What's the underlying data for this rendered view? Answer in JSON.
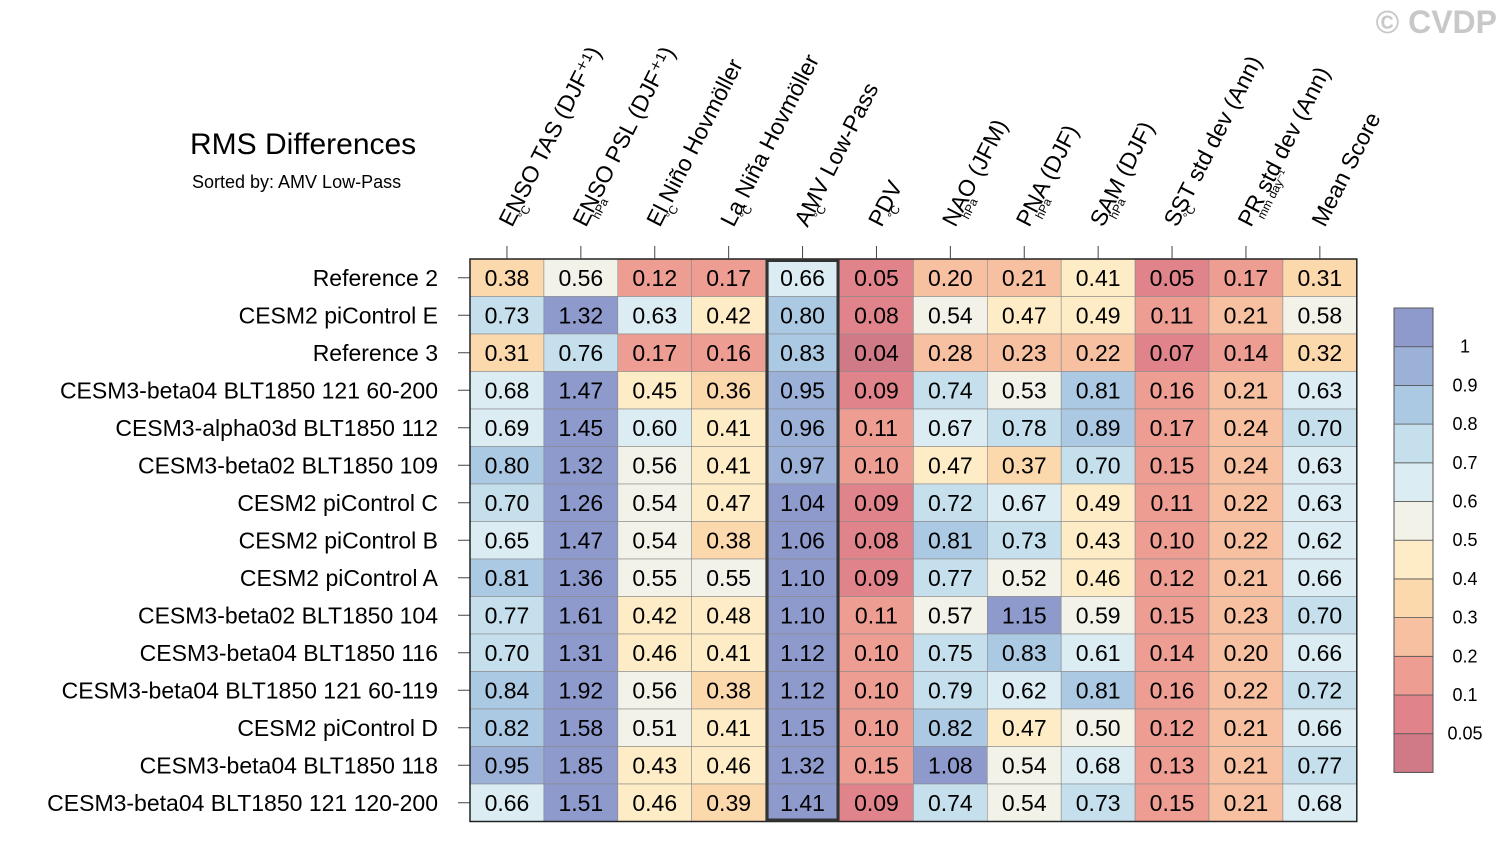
{
  "watermark": "© CVDP",
  "chart_data": {
    "type": "heatmap",
    "title": "RMS Differences",
    "subtitle": "Sorted by: AMV Low-Pass",
    "highlighted_column": "AMV Low-Pass",
    "columns": [
      {
        "label": "ENSO TAS (DJF⁺¹)",
        "unit": "°C"
      },
      {
        "label": "ENSO PSL (DJF⁺¹)",
        "unit": "hPa"
      },
      {
        "label": "El Niño Hovmöller",
        "unit": "°C"
      },
      {
        "label": "La Niña Hovmöller",
        "unit": "°C"
      },
      {
        "label": "AMV Low-Pass",
        "unit": "°C"
      },
      {
        "label": "PDV",
        "unit": "°C"
      },
      {
        "label": "NAO (JFM)",
        "unit": "hPa"
      },
      {
        "label": "PNA (DJF)",
        "unit": "hPa"
      },
      {
        "label": "SAM (DJF)",
        "unit": "hPa"
      },
      {
        "label": "SST std dev (Ann)",
        "unit": "°C"
      },
      {
        "label": "PR std dev (Ann)",
        "unit": "mm day⁻¹"
      },
      {
        "label": "Mean Score",
        "unit": ""
      }
    ],
    "rows": [
      {
        "label": "Reference 2",
        "values": [
          "0.38",
          "0.56",
          "0.12",
          "0.17",
          "0.66",
          "0.05",
          "0.20",
          "0.21",
          "0.41",
          "0.05",
          "0.17",
          "0.31"
        ]
      },
      {
        "label": "CESM2 piControl E",
        "values": [
          "0.73",
          "1.32",
          "0.63",
          "0.42",
          "0.80",
          "0.08",
          "0.54",
          "0.47",
          "0.49",
          "0.11",
          "0.21",
          "0.58"
        ]
      },
      {
        "label": "Reference 3",
        "values": [
          "0.31",
          "0.76",
          "0.17",
          "0.16",
          "0.83",
          "0.04",
          "0.28",
          "0.23",
          "0.22",
          "0.07",
          "0.14",
          "0.32"
        ]
      },
      {
        "label": "CESM3-beta04 BLT1850 121 60-200",
        "values": [
          "0.68",
          "1.47",
          "0.45",
          "0.36",
          "0.95",
          "0.09",
          "0.74",
          "0.53",
          "0.81",
          "0.16",
          "0.21",
          "0.63"
        ]
      },
      {
        "label": "CESM3-alpha03d BLT1850 112",
        "values": [
          "0.69",
          "1.45",
          "0.60",
          "0.41",
          "0.96",
          "0.11",
          "0.67",
          "0.78",
          "0.89",
          "0.17",
          "0.24",
          "0.70"
        ]
      },
      {
        "label": "CESM3-beta02 BLT1850 109",
        "values": [
          "0.80",
          "1.32",
          "0.56",
          "0.41",
          "0.97",
          "0.10",
          "0.47",
          "0.37",
          "0.70",
          "0.15",
          "0.24",
          "0.63"
        ]
      },
      {
        "label": "CESM2 piControl C",
        "values": [
          "0.70",
          "1.26",
          "0.54",
          "0.47",
          "1.04",
          "0.09",
          "0.72",
          "0.67",
          "0.49",
          "0.11",
          "0.22",
          "0.63"
        ]
      },
      {
        "label": "CESM2 piControl B",
        "values": [
          "0.65",
          "1.47",
          "0.54",
          "0.38",
          "1.06",
          "0.08",
          "0.81",
          "0.73",
          "0.43",
          "0.10",
          "0.22",
          "0.62"
        ]
      },
      {
        "label": "CESM2 piControl A",
        "values": [
          "0.81",
          "1.36",
          "0.55",
          "0.55",
          "1.10",
          "0.09",
          "0.77",
          "0.52",
          "0.46",
          "0.12",
          "0.21",
          "0.66"
        ]
      },
      {
        "label": "CESM3-beta02 BLT1850 104",
        "values": [
          "0.77",
          "1.61",
          "0.42",
          "0.48",
          "1.10",
          "0.11",
          "0.57",
          "1.15",
          "0.59",
          "0.15",
          "0.23",
          "0.70"
        ]
      },
      {
        "label": "CESM3-beta04 BLT1850 116",
        "values": [
          "0.70",
          "1.31",
          "0.46",
          "0.41",
          "1.12",
          "0.10",
          "0.75",
          "0.83",
          "0.61",
          "0.14",
          "0.20",
          "0.66"
        ]
      },
      {
        "label": "CESM3-beta04 BLT1850 121 60-119",
        "values": [
          "0.84",
          "1.92",
          "0.56",
          "0.38",
          "1.12",
          "0.10",
          "0.79",
          "0.62",
          "0.81",
          "0.16",
          "0.22",
          "0.72"
        ]
      },
      {
        "label": "CESM2 piControl D",
        "values": [
          "0.82",
          "1.58",
          "0.51",
          "0.41",
          "1.15",
          "0.10",
          "0.82",
          "0.47",
          "0.50",
          "0.12",
          "0.21",
          "0.66"
        ]
      },
      {
        "label": "CESM3-beta04 BLT1850 118",
        "values": [
          "0.95",
          "1.85",
          "0.43",
          "0.46",
          "1.32",
          "0.15",
          "1.08",
          "0.54",
          "0.68",
          "0.13",
          "0.21",
          "0.77"
        ]
      },
      {
        "label": "CESM3-beta04 BLT1850 121 120-200",
        "values": [
          "0.66",
          "1.51",
          "0.46",
          "0.39",
          "1.41",
          "0.09",
          "0.74",
          "0.54",
          "0.73",
          "0.15",
          "0.21",
          "0.68"
        ]
      }
    ],
    "colorbar": {
      "levels": [
        0.05,
        0.1,
        0.2,
        0.3,
        0.4,
        0.5,
        0.6,
        0.7,
        0.8,
        0.9,
        1
      ],
      "labels": [
        "0.05",
        "0.1",
        "0.2",
        "0.3",
        "0.4",
        "0.5",
        "0.6",
        "0.7",
        "0.8",
        "0.9",
        "1"
      ],
      "colors": [
        "#d17a87",
        "#e0838a",
        "#ee9d93",
        "#f6c0a1",
        "#fcd8ad",
        "#fdecc5",
        "#f2f2e9",
        "#dbecf3",
        "#c5e0ec",
        "#abc9e2",
        "#9bb1d8",
        "#8e9acc"
      ]
    }
  }
}
